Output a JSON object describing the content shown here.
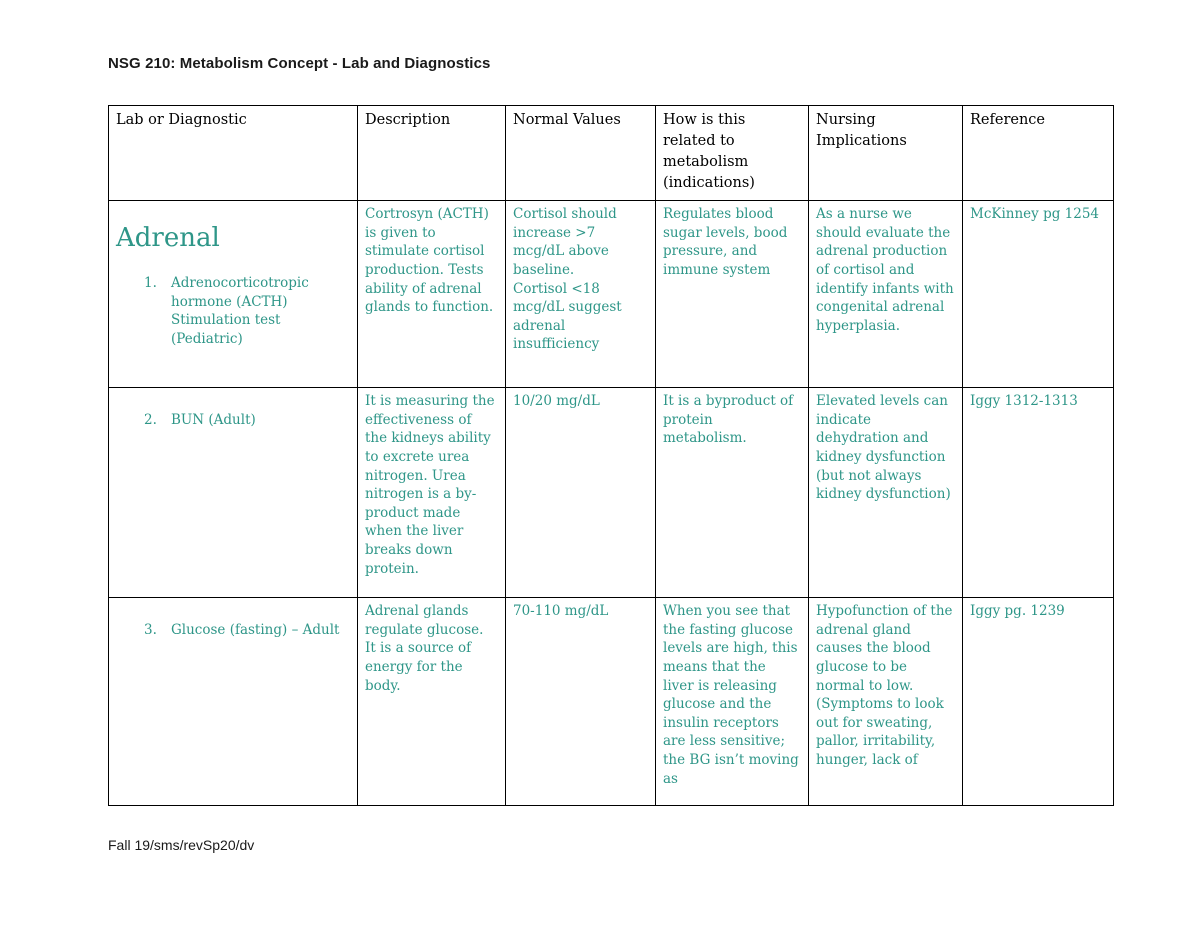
{
  "page": {
    "title": "NSG 210:  Metabolism Concept - Lab and Diagnostics",
    "footer": "Fall 19/sms/revSp20/dv"
  },
  "colors": {
    "body_text": "#2E9688",
    "header_text": "#000000",
    "border": "#000000"
  },
  "table": {
    "headers": [
      "Lab or Diagnostic",
      "Description",
      "Normal Values",
      "How is this related to metabolism (indications)",
      "Nursing Implications",
      "Reference"
    ],
    "section_heading": "Adrenal",
    "rows": [
      {
        "number": "1.",
        "lab": "Adrenocorticotropic hormone (ACTH) Stimulation test (Pediatric)",
        "description": "Cortrosyn (ACTH) is given to stimulate cortisol production. Tests ability of adrenal glands to function.",
        "normal_values": "Cortisol should increase >7 mcg/dL above baseline.\nCortisol <18 mcg/dL suggest adrenal insufficiency",
        "metabolism_relation": "Regulates blood sugar levels, bood pressure, and immune system",
        "nursing_implications": "As a nurse we should evaluate the adrenal production of cortisol and identify infants with congenital adrenal hyperplasia.",
        "reference": "McKinney pg 1254"
      },
      {
        "number": "2.",
        "lab": "BUN (Adult)",
        "description": "It is measuring the effectiveness of the kidneys ability to excrete urea nitrogen. Urea nitrogen is a by-product made when the liver breaks down protein.",
        "normal_values": "10/20 mg/dL",
        "metabolism_relation": "It is a byproduct of protein metabolism.",
        "nursing_implications": "Elevated levels can indicate dehydration and kidney dysfunction (but not always kidney dysfunction)",
        "reference": "Iggy 1312-1313"
      },
      {
        "number": "3.",
        "lab": "Glucose (fasting) – Adult",
        "description": "Adrenal glands regulate glucose. It is a source of energy for the body.",
        "normal_values": "70-110 mg/dL",
        "metabolism_relation": "When you see that the fasting glucose levels are high, this means that the liver is releasing glucose and the insulin receptors are less sensitive; the BG isn’t moving as",
        "nursing_implications": "Hypofunction of the adrenal gland causes the blood glucose to be normal to low. (Symptoms to look out for sweating, pallor, irritability, hunger, lack of",
        "reference": "Iggy pg. 1239"
      }
    ]
  }
}
